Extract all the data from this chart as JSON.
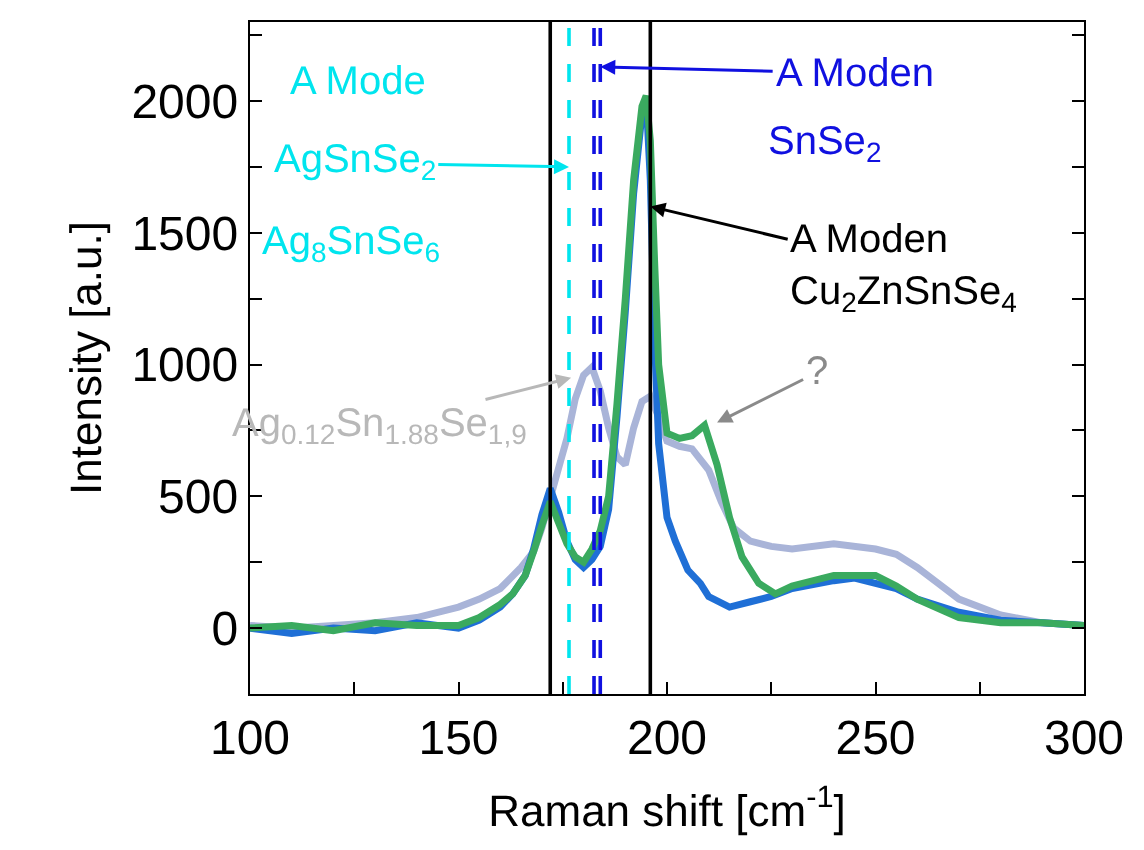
{
  "chart_data": {
    "type": "line",
    "xlabel": "Raman shift [cm$^{-1}$]",
    "ylabel": "Intensity [a.u.]",
    "series": [
      {
        "color": "#a9b4d8",
        "x": [
          100,
          110,
          120,
          130,
          140,
          150,
          155,
          160,
          165,
          168,
          170,
          173,
          176,
          178,
          180,
          182,
          184,
          186,
          188,
          190,
          192,
          194,
          196,
          198,
          200,
          203,
          206,
          210,
          213,
          216,
          220,
          225,
          230,
          240,
          250,
          255,
          260,
          265,
          270,
          280,
          290,
          300
        ],
        "values": [
          10,
          0,
          10,
          20,
          40,
          80,
          110,
          150,
          230,
          290,
          380,
          550,
          720,
          870,
          960,
          990,
          900,
          760,
          650,
          620,
          760,
          860,
          880,
          800,
          710,
          690,
          680,
          600,
          480,
          380,
          330,
          310,
          300,
          320,
          300,
          280,
          230,
          170,
          110,
          50,
          20,
          10
        ]
      },
      {
        "color": "#1f6fd6",
        "x": [
          100,
          110,
          120,
          130,
          140,
          150,
          155,
          160,
          163,
          166,
          168,
          170,
          172,
          174,
          176,
          178,
          180,
          182,
          184,
          186,
          188,
          190,
          192,
          194,
          195,
          196,
          197,
          198,
          200,
          202,
          205,
          208,
          210,
          215,
          220,
          225,
          230,
          240,
          245,
          250,
          255,
          260,
          270,
          280,
          290,
          300
        ],
        "values": [
          0,
          -20,
          0,
          -10,
          20,
          0,
          30,
          80,
          130,
          200,
          300,
          430,
          530,
          440,
          330,
          260,
          230,
          260,
          310,
          450,
          800,
          1200,
          1650,
          1950,
          2010,
          1700,
          1100,
          700,
          420,
          330,
          220,
          170,
          120,
          80,
          100,
          120,
          150,
          180,
          190,
          170,
          150,
          110,
          60,
          30,
          20,
          10
        ]
      },
      {
        "color": "#3aaa5f",
        "x": [
          100,
          110,
          120,
          130,
          140,
          150,
          155,
          160,
          163,
          166,
          168,
          170,
          172,
          174,
          176,
          178,
          180,
          182,
          184,
          186,
          188,
          190,
          192,
          194,
          195,
          196,
          197,
          198,
          200,
          203,
          206,
          209,
          212,
          215,
          218,
          222,
          226,
          230,
          240,
          250,
          255,
          260,
          270,
          280,
          290,
          300
        ],
        "values": [
          0,
          10,
          -10,
          20,
          10,
          10,
          40,
          90,
          130,
          200,
          290,
          390,
          480,
          400,
          320,
          270,
          250,
          300,
          370,
          500,
          850,
          1250,
          1700,
          1980,
          2020,
          1850,
          1400,
          1000,
          740,
          720,
          730,
          770,
          620,
          420,
          270,
          170,
          130,
          160,
          200,
          200,
          160,
          110,
          40,
          20,
          20,
          10
        ]
      }
    ],
    "xlim": [
      100,
      300
    ],
    "ylim": [
      -250,
      2300
    ],
    "xticks": [
      100,
      {
        "value": 125,
        "label": null
      },
      150,
      {
        "value": 175,
        "label": null
      },
      200,
      {
        "value": 225,
        "label": null
      },
      250,
      {
        "value": 275,
        "label": null
      },
      300
    ],
    "yticks": [
      {
        "value": -250,
        "label": null
      },
      0,
      {
        "value": 250,
        "label": null
      },
      500,
      {
        "value": 750,
        "label": null
      },
      1000,
      {
        "value": 1250,
        "label": null
      },
      1500,
      {
        "value": 1750,
        "label": null
      },
      2000,
      {
        "value": 2250,
        "label": null
      }
    ],
    "ref_lines": [
      {
        "axis": "x",
        "value": 172,
        "color": "#000000",
        "line_style": "solid"
      },
      {
        "axis": "x",
        "value": 176.5,
        "color": "#00e5ee",
        "line_style": "dashed"
      },
      {
        "axis": "x",
        "value": 182.5,
        "color": "#1010e0",
        "line_style": "dashed"
      },
      {
        "axis": "x",
        "value": 184,
        "color": "#1010e0",
        "line_style": "dashed"
      },
      {
        "axis": "x",
        "value": 196,
        "color": "#000000",
        "line_style": "solid"
      }
    ],
    "annotations": [
      "A Mode",
      {
        "text": "AgSnSe$_{2}$",
        "x": 176.5,
        "y": 1750
      },
      "Ag$_{8}$SnSe$_{6}$",
      {
        "text": "A Moden",
        "x": 184,
        "y": 2130
      },
      "SnSe$_{2}$",
      {
        "text": "A Moden\nCu$_{2}$ZnSnSe$_{4}$",
        "x": 196,
        "y": 1600
      },
      {
        "text": "Ag$_{0.12}$Sn$_{1.88}$Se$_{1,9}$",
        "x": 177,
        "y": 950
      },
      {
        "text": "?",
        "x": 212,
        "y": 780
      }
    ],
    "marker": "none",
    "line_style": "solid"
  }
}
